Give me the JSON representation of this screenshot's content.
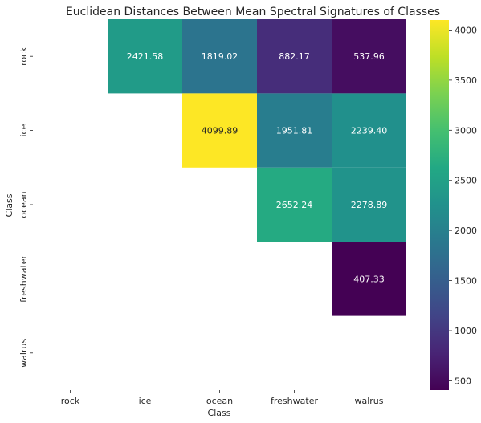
{
  "chart_data": {
    "type": "heatmap",
    "title": "Euclidean Distances Between Mean Spectral Signatures of Classes",
    "xlabel": "Class",
    "ylabel": "Class",
    "x_categories": [
      "rock",
      "ice",
      "ocean",
      "freshwater",
      "walrus"
    ],
    "y_categories": [
      "rock",
      "ice",
      "ocean",
      "freshwater",
      "walrus"
    ],
    "cells": [
      {
        "row": "rock",
        "col": "ice",
        "value": 2421.58
      },
      {
        "row": "rock",
        "col": "ocean",
        "value": 1819.02
      },
      {
        "row": "rock",
        "col": "freshwater",
        "value": 882.17
      },
      {
        "row": "rock",
        "col": "walrus",
        "value": 537.96
      },
      {
        "row": "ice",
        "col": "ocean",
        "value": 4099.89
      },
      {
        "row": "ice",
        "col": "freshwater",
        "value": 1951.81
      },
      {
        "row": "ice",
        "col": "walrus",
        "value": 2239.4
      },
      {
        "row": "ocean",
        "col": "freshwater",
        "value": 2652.24
      },
      {
        "row": "ocean",
        "col": "walrus",
        "value": 2278.89
      },
      {
        "row": "freshwater",
        "col": "walrus",
        "value": 407.33
      }
    ],
    "value_labels": [
      "2421.58",
      "1819.02",
      "882.17",
      "537.96",
      "4099.89",
      "1951.81",
      "2239.40",
      "2652.24",
      "2278.89",
      "407.33"
    ],
    "colormap": "viridis",
    "colorbar": {
      "range": [
        407.33,
        4099.89
      ],
      "ticks": [
        500,
        1000,
        1500,
        2000,
        2500,
        3000,
        3500,
        4000
      ],
      "tick_labels": [
        "500",
        "1000",
        "1500",
        "2000",
        "2500",
        "3000",
        "3500",
        "4000"
      ]
    },
    "colors": {
      "text_dark_cell": "#ffffff",
      "text_light_cell": "#262626"
    }
  }
}
